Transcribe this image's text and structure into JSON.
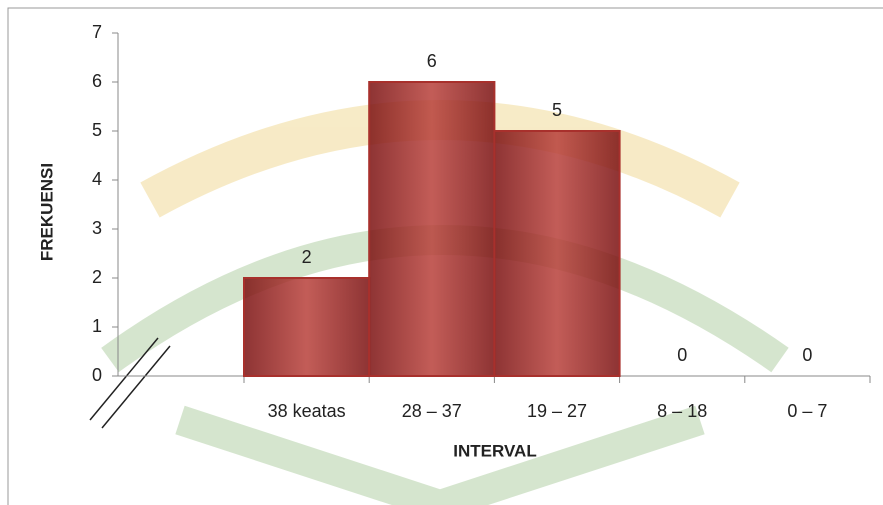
{
  "chart_data": {
    "type": "bar",
    "x_label": "INTERVAL",
    "y_label": "FREKUENSI",
    "categories": [
      "38 keatas",
      "28 – 37",
      "19 – 27",
      "8 – 18",
      "0 – 7"
    ],
    "values": [
      2,
      6,
      5,
      0,
      0
    ],
    "color": "#a8302c",
    "ylim": [
      0,
      7
    ],
    "yticks": [
      0,
      1,
      2,
      3,
      4,
      5,
      6,
      7
    ]
  }
}
